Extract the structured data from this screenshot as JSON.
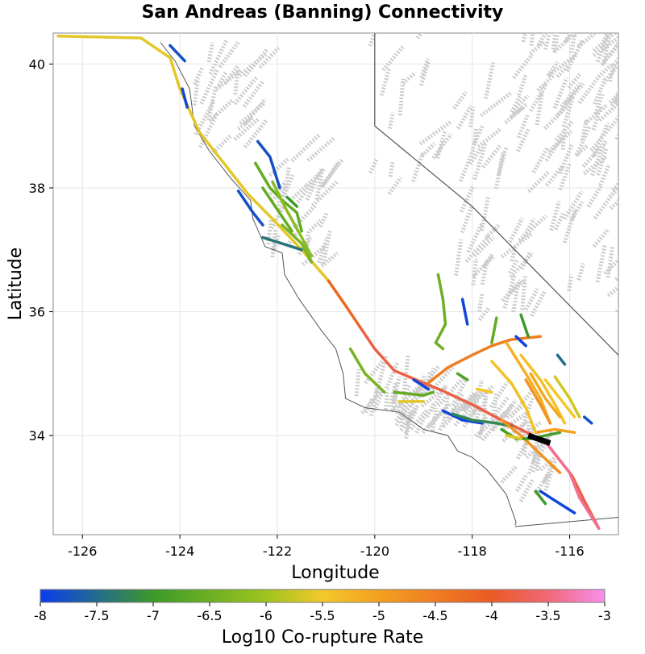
{
  "title": "San Andreas (Banning) Connectivity",
  "map": {
    "x_axis": {
      "label": "Longitude",
      "range": [
        -126.6,
        -115.0
      ],
      "ticks": [
        -126,
        -124,
        -122,
        -120,
        -118,
        -116
      ],
      "tick_labels": [
        "-126",
        "-124",
        "-122",
        "-120",
        "-118",
        "-116"
      ]
    },
    "y_axis": {
      "label": "Latitude",
      "range": [
        32.4,
        40.5
      ],
      "ticks": [
        34,
        36,
        38,
        40
      ],
      "tick_labels": [
        "34",
        "36",
        "38",
        "40"
      ]
    },
    "grid": true,
    "background_faults_color": "#c8c8c8",
    "boundary_color": "#555555",
    "highlight_color": "#000000"
  },
  "colorbar": {
    "label": "Log10 Co-rupture Rate",
    "range": [
      -8,
      -3
    ],
    "ticks": [
      -8,
      -7.5,
      -7,
      -6.5,
      -6,
      -5.5,
      -5,
      -4.5,
      -4,
      -3.5,
      -3
    ],
    "tick_labels": [
      "-8",
      "-7.5",
      "-7",
      "-6.5",
      "-6",
      "-5.5",
      "-5",
      "-4.5",
      "-4",
      "-3.5",
      "-3"
    ],
    "stops": [
      {
        "value": -8,
        "color": "#0a3cf0"
      },
      {
        "value": -7,
        "color": "#3c9a2a"
      },
      {
        "value": -6,
        "color": "#9ec41e"
      },
      {
        "value": -5.5,
        "color": "#f4c82a"
      },
      {
        "value": -5,
        "color": "#f4a020"
      },
      {
        "value": -4,
        "color": "#ea5a24"
      },
      {
        "value": -3.5,
        "color": "#f06878"
      },
      {
        "value": -3,
        "color": "#f890ec"
      }
    ]
  },
  "ruptures": [
    {
      "name": "north-coast",
      "rate": -5.6,
      "coords": [
        [
          -126.5,
          40.45
        ],
        [
          -124.8,
          40.42
        ],
        [
          -124.2,
          40.1
        ],
        [
          -124.0,
          39.6
        ],
        [
          -123.6,
          38.9
        ],
        [
          -123.0,
          38.3
        ],
        [
          -122.6,
          37.9
        ],
        [
          -122.1,
          37.5
        ],
        [
          -121.5,
          37.0
        ],
        [
          -120.95,
          36.5
        ]
      ]
    },
    {
      "name": "creeping",
      "rate": -4.2,
      "coords": [
        [
          -120.95,
          36.5
        ],
        [
          -120.6,
          36.1
        ],
        [
          -120.3,
          35.75
        ]
      ]
    },
    {
      "name": "parkfield-carrizo",
      "rate": -3.8,
      "coords": [
        [
          -120.3,
          35.75
        ],
        [
          -120.0,
          35.4
        ],
        [
          -119.6,
          35.05
        ],
        [
          -119.0,
          34.85
        ],
        [
          -118.6,
          34.72
        ],
        [
          -118.0,
          34.5
        ],
        [
          -117.4,
          34.25
        ],
        [
          -116.8,
          34.02
        ],
        [
          -116.5,
          33.9
        ],
        [
          -116.2,
          33.6
        ],
        [
          -115.95,
          33.35
        ],
        [
          -115.7,
          32.95
        ],
        [
          -115.4,
          32.5
        ]
      ]
    },
    {
      "name": "banning-tail",
      "rate": -3.4,
      "coords": [
        [
          -116.45,
          33.85
        ],
        [
          -116.0,
          33.4
        ],
        [
          -115.8,
          33.0
        ],
        [
          -115.4,
          32.5
        ]
      ]
    },
    {
      "name": "garlock",
      "rate": -4.5,
      "coords": [
        [
          -118.9,
          34.85
        ],
        [
          -118.5,
          35.1
        ],
        [
          -118.0,
          35.3
        ],
        [
          -117.6,
          35.45
        ],
        [
          -117.2,
          35.55
        ],
        [
          -116.6,
          35.6
        ]
      ]
    },
    {
      "name": "mendocino-blue",
      "rate": -7.8,
      "coords": [
        [
          -124.2,
          40.3
        ],
        [
          -123.9,
          40.05
        ]
      ]
    },
    {
      "name": "mendocino-blue-2",
      "rate": -7.9,
      "coords": [
        [
          -123.95,
          39.6
        ],
        [
          -123.85,
          39.3
        ]
      ]
    },
    {
      "name": "bartlett-springs",
      "rate": -7.8,
      "coords": [
        [
          -122.4,
          38.75
        ],
        [
          -122.15,
          38.5
        ],
        [
          -121.95,
          38.0
        ]
      ]
    },
    {
      "name": "green-valley",
      "rate": -6.6,
      "coords": [
        [
          -122.45,
          38.4
        ],
        [
          -122.15,
          38.0
        ],
        [
          -121.9,
          37.8
        ],
        [
          -121.6,
          37.6
        ],
        [
          -121.5,
          37.3
        ]
      ]
    },
    {
      "name": "calaveras",
      "rate": -6.2,
      "coords": [
        [
          -122.1,
          38.1
        ],
        [
          -121.85,
          37.7
        ],
        [
          -121.5,
          37.2
        ],
        [
          -121.3,
          36.9
        ]
      ]
    },
    {
      "name": "greenville",
      "rate": -7.0,
      "coords": [
        [
          -121.8,
          37.85
        ],
        [
          -121.6,
          37.7
        ]
      ]
    },
    {
      "name": "hayward",
      "rate": -6.6,
      "coords": [
        [
          -122.3,
          38.0
        ],
        [
          -122.0,
          37.65
        ],
        [
          -121.7,
          37.3
        ]
      ]
    },
    {
      "name": "san-gregorio",
      "rate": -7.8,
      "coords": [
        [
          -122.8,
          37.95
        ],
        [
          -122.5,
          37.6
        ],
        [
          -122.3,
          37.4
        ]
      ]
    },
    {
      "name": "sargent",
      "rate": -7.4,
      "coords": [
        [
          -122.3,
          37.2
        ],
        [
          -121.9,
          37.1
        ],
        [
          -121.5,
          37.0
        ]
      ]
    },
    {
      "name": "ortigalita",
      "rate": -6.4,
      "coords": [
        [
          -121.9,
          37.4
        ],
        [
          -121.5,
          37.1
        ],
        [
          -121.3,
          36.8
        ]
      ]
    },
    {
      "name": "rinconada",
      "rate": -6.4,
      "coords": [
        [
          -120.5,
          35.4
        ],
        [
          -120.2,
          35.0
        ],
        [
          -119.8,
          34.7
        ]
      ]
    },
    {
      "name": "big-pine",
      "rate": -6.6,
      "coords": [
        [
          -119.6,
          34.7
        ],
        [
          -119.0,
          34.65
        ],
        [
          -118.8,
          34.7
        ]
      ]
    },
    {
      "name": "sb-channel",
      "rate": -7.9,
      "coords": [
        [
          -119.2,
          34.9
        ],
        [
          -118.9,
          34.75
        ]
      ]
    },
    {
      "name": "santa-ynez",
      "rate": -5.6,
      "coords": [
        [
          -119.5,
          34.55
        ],
        [
          -119.0,
          34.55
        ]
      ]
    },
    {
      "name": "sierra-madre",
      "rate": -7.9,
      "coords": [
        [
          -118.6,
          34.4
        ],
        [
          -118.2,
          34.25
        ],
        [
          -117.8,
          34.2
        ]
      ]
    },
    {
      "name": "cucamonga",
      "rate": -7.2,
      "coords": [
        [
          -118.4,
          34.35
        ],
        [
          -118.0,
          34.25
        ],
        [
          -117.5,
          34.2
        ],
        [
          -117.2,
          34.15
        ]
      ]
    },
    {
      "name": "san-jacinto",
      "rate": -4.8,
      "coords": [
        [
          -117.4,
          34.25
        ],
        [
          -117.0,
          34.0
        ],
        [
          -116.6,
          33.7
        ],
        [
          -116.2,
          33.4
        ]
      ]
    },
    {
      "name": "elsinore-green",
      "rate": -6.9,
      "coords": [
        [
          -117.4,
          34.1
        ],
        [
          -117.1,
          33.95
        ],
        [
          -116.8,
          33.95
        ],
        [
          -116.5,
          34.0
        ],
        [
          -116.2,
          34.05
        ]
      ]
    },
    {
      "name": "pinto-mtn",
      "rate": -5.0,
      "coords": [
        [
          -116.7,
          34.05
        ],
        [
          -116.3,
          34.1
        ],
        [
          -115.9,
          34.05
        ]
      ]
    },
    {
      "name": "helendale",
      "rate": -5.4,
      "coords": [
        [
          -117.6,
          35.2
        ],
        [
          -117.2,
          34.85
        ],
        [
          -116.9,
          34.45
        ],
        [
          -116.7,
          34.05
        ]
      ]
    },
    {
      "name": "lenwood",
      "rate": -5.2,
      "coords": [
        [
          -117.3,
          35.5
        ],
        [
          -116.9,
          35.0
        ],
        [
          -116.6,
          34.6
        ],
        [
          -116.4,
          34.2
        ]
      ]
    },
    {
      "name": "camp-rock",
      "rate": -5.4,
      "coords": [
        [
          -117.0,
          35.3
        ],
        [
          -116.6,
          34.9
        ],
        [
          -116.3,
          34.5
        ],
        [
          -116.1,
          34.2
        ]
      ]
    },
    {
      "name": "calico",
      "rate": -5.1,
      "coords": [
        [
          -116.8,
          35.0
        ],
        [
          -116.5,
          34.6
        ],
        [
          -116.2,
          34.3
        ]
      ]
    },
    {
      "name": "emerson",
      "rate": -5.5,
      "coords": [
        [
          -116.5,
          34.9
        ],
        [
          -116.2,
          34.6
        ],
        [
          -115.9,
          34.3
        ]
      ]
    },
    {
      "name": "johnson-valley",
      "rate": -5.7,
      "coords": [
        [
          -116.3,
          34.95
        ],
        [
          -116.0,
          34.6
        ],
        [
          -115.8,
          34.3
        ]
      ]
    },
    {
      "name": "blackwater",
      "rate": -4.8,
      "coords": [
        [
          -116.9,
          34.9
        ],
        [
          -116.6,
          34.5
        ],
        [
          -116.4,
          34.2
        ]
      ]
    },
    {
      "name": "owens-blue",
      "rate": -7.9,
      "coords": [
        [
          -118.2,
          36.2
        ],
        [
          -118.1,
          35.8
        ]
      ]
    },
    {
      "name": "kern-green",
      "rate": -6.5,
      "coords": [
        [
          -118.7,
          36.6
        ],
        [
          -118.6,
          36.2
        ],
        [
          -118.55,
          35.8
        ],
        [
          -118.75,
          35.5
        ],
        [
          -118.6,
          35.4
        ]
      ]
    },
    {
      "name": "panamint",
      "rate": -6.6,
      "coords": [
        [
          -117.5,
          35.9
        ],
        [
          -117.6,
          35.5
        ]
      ]
    },
    {
      "name": "sierra-nevada-green",
      "rate": -7.0,
      "coords": [
        [
          -117.0,
          35.95
        ],
        [
          -116.85,
          35.6
        ]
      ]
    },
    {
      "name": "blue-small-ne",
      "rate": -7.9,
      "coords": [
        [
          -117.1,
          35.6
        ],
        [
          -116.9,
          35.45
        ]
      ]
    },
    {
      "name": "blue-small-e",
      "rate": -7.5,
      "coords": [
        [
          -116.25,
          35.3
        ],
        [
          -116.1,
          35.15
        ]
      ]
    },
    {
      "name": "blue-pinto",
      "rate": -7.8,
      "coords": [
        [
          -115.7,
          34.3
        ],
        [
          -115.55,
          34.2
        ]
      ]
    },
    {
      "name": "elsinore-blue",
      "rate": -7.9,
      "coords": [
        [
          -116.6,
          33.1
        ],
        [
          -116.3,
          32.95
        ],
        [
          -115.9,
          32.75
        ]
      ]
    },
    {
      "name": "elsinore-green-2",
      "rate": -7.0,
      "coords": [
        [
          -116.7,
          33.1
        ],
        [
          -116.5,
          32.9
        ]
      ]
    },
    {
      "name": "newport-yellow",
      "rate": -5.6,
      "coords": [
        [
          -117.3,
          34.0
        ],
        [
          -117.0,
          33.95
        ]
      ]
    },
    {
      "name": "mojave-yellow",
      "rate": -5.5,
      "coords": [
        [
          -117.9,
          34.75
        ],
        [
          -117.6,
          34.7
        ]
      ]
    },
    {
      "name": "cholame-green",
      "rate": -6.8,
      "coords": [
        [
          -118.3,
          35.0
        ],
        [
          -118.1,
          34.9
        ]
      ]
    }
  ],
  "highlight": {
    "name": "banning-section",
    "coords": [
      [
        -116.85,
        34.0
      ],
      [
        -116.4,
        33.88
      ]
    ]
  },
  "coast": [
    [
      -124.4,
      40.35
    ],
    [
      -124.1,
      40.05
    ],
    [
      -123.8,
      39.6
    ],
    [
      -123.7,
      39.0
    ],
    [
      -123.4,
      38.6
    ],
    [
      -122.95,
      38.15
    ],
    [
      -122.55,
      37.8
    ],
    [
      -122.5,
      37.5
    ],
    [
      -122.25,
      37.05
    ],
    [
      -121.9,
      36.95
    ],
    [
      -121.85,
      36.6
    ],
    [
      -121.55,
      36.2
    ],
    [
      -121.1,
      35.7
    ],
    [
      -120.8,
      35.4
    ],
    [
      -120.65,
      35.0
    ],
    [
      -120.6,
      34.6
    ],
    [
      -120.2,
      34.45
    ],
    [
      -119.5,
      34.38
    ],
    [
      -119.0,
      34.1
    ],
    [
      -118.5,
      34.0
    ],
    [
      -118.3,
      33.75
    ],
    [
      -118.0,
      33.65
    ],
    [
      -117.7,
      33.45
    ],
    [
      -117.3,
      33.05
    ],
    [
      -117.1,
      32.6
    ],
    [
      -117.12,
      32.55
    ]
  ],
  "border": [
    [
      -120.0,
      40.5
    ],
    [
      -120.0,
      39.0
    ],
    [
      -118.0,
      37.7
    ],
    [
      -115.0,
      35.3
    ]
  ],
  "border_mexico": [
    [
      -117.12,
      32.53
    ],
    [
      -115.0,
      32.68
    ]
  ]
}
